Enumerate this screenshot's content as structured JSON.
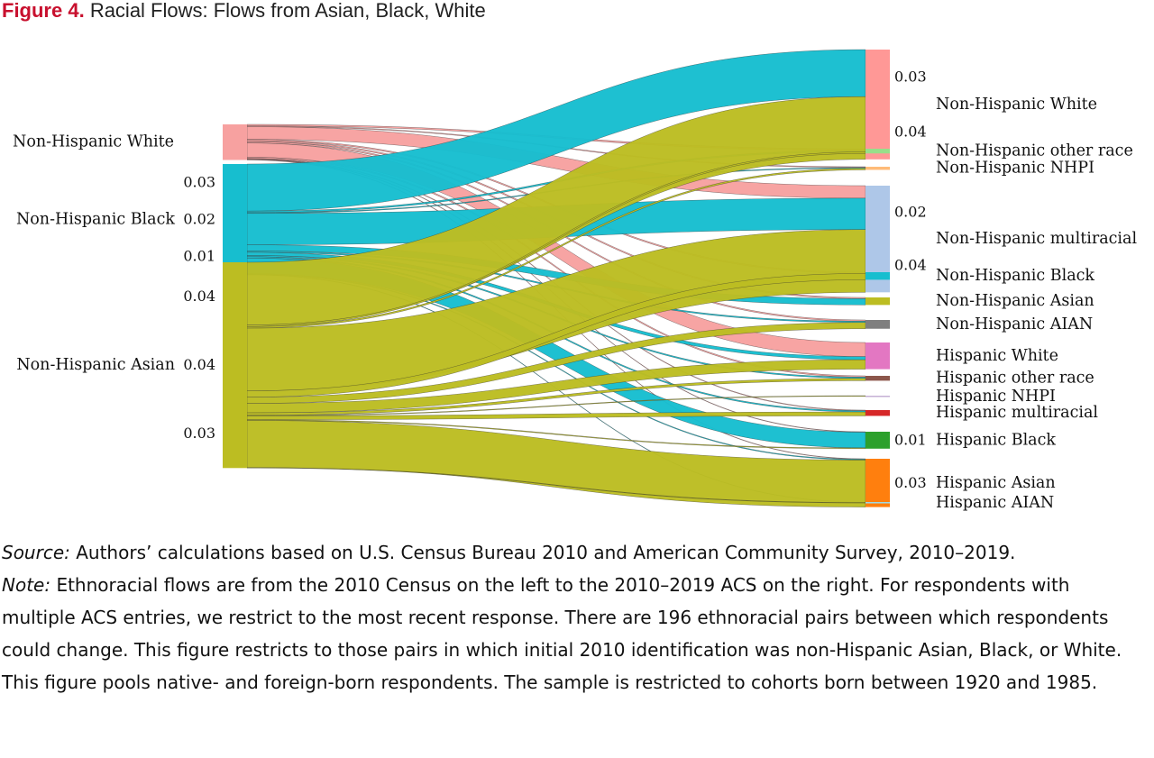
{
  "title": {
    "prefix": "Figure 4.",
    "text": "Racial Flows: Flows from Asian, Black, White"
  },
  "notes": {
    "source_label": "Source:",
    "source_text": "Authors’ calculations based on U.S. Census Bureau 2010 and American Community Survey, 2010–2019.",
    "note_label": "Note:",
    "note_text": "Ethnoracial flows are from the 2010 Census on the left to the 2010–2019 ACS on the right. For respondents with multiple ACS entries, we restrict to the most recent response. There are 196 ethnora­cial pairs between which respondents could change. This figure restricts to those pairs in which initial 2010 identification was non-Hispanic Asian, Black, or White. This figure pools native- and foreign-born respondents. The sample is restricted to cohorts born between 1920 and 1985."
  },
  "chart_data": {
    "type": "sankey",
    "sources": [
      {
        "name": "Non-Hispanic White",
        "color": "#f7a1a0",
        "value_labels": []
      },
      {
        "name": "Non-Hispanic Black",
        "color": "#17becf",
        "value_labels": [
          "0.03",
          "0.02",
          "0.01"
        ]
      },
      {
        "name": "Non-Hispanic Asian",
        "color": "#bcbd22",
        "value_labels": [
          "0.04",
          "0.04",
          "0.03"
        ]
      }
    ],
    "targets": [
      {
        "name": "Non-Hispanic White",
        "color": "#ff9896",
        "value_labels": [
          "0.03",
          "0.04"
        ]
      },
      {
        "name": "Non-Hispanic other race",
        "color": "#98df8a",
        "value_labels": []
      },
      {
        "name": "Non-Hispanic NHPI",
        "color": "#ffbb78",
        "value_labels": []
      },
      {
        "name": "Non-Hispanic multiracial",
        "color": "#aec7e8",
        "value_labels": [
          "0.02",
          "0.04"
        ]
      },
      {
        "name": "Non-Hispanic Black",
        "color": "#17becf",
        "value_labels": []
      },
      {
        "name": "Non-Hispanic Asian",
        "color": "#bcbd22",
        "value_labels": []
      },
      {
        "name": "Non-Hispanic AIAN",
        "color": "#7f7f7f",
        "value_labels": []
      },
      {
        "name": "Hispanic White",
        "color": "#e377c2",
        "value_labels": []
      },
      {
        "name": "Hispanic other race",
        "color": "#8c564b",
        "value_labels": []
      },
      {
        "name": "Hispanic NHPI",
        "color": "#c5b0d5",
        "value_labels": []
      },
      {
        "name": "Hispanic multiracial",
        "color": "#d62728",
        "value_labels": []
      },
      {
        "name": "Hispanic Black",
        "color": "#2ca02c",
        "value_labels": [
          "0.01"
        ]
      },
      {
        "name": "Hispanic Asian",
        "color": "#ff7f0e",
        "value_labels": [
          "0.03"
        ]
      },
      {
        "name": "Hispanic AIAN",
        "color": "#9edae5",
        "value_labels": []
      }
    ],
    "flows": [
      {
        "source": "Non-Hispanic White",
        "target": "Non-Hispanic other race",
        "value": 0.001
      },
      {
        "source": "Non-Hispanic White",
        "target": "Non-Hispanic NHPI",
        "value": 0.0005
      },
      {
        "source": "Non-Hispanic White",
        "target": "Non-Hispanic multiracial",
        "value": 0.008
      },
      {
        "source": "Non-Hispanic White",
        "target": "Non-Hispanic Black",
        "value": 0.0008
      },
      {
        "source": "Non-Hispanic White",
        "target": "Non-Hispanic Asian",
        "value": 0.0008
      },
      {
        "source": "Non-Hispanic White",
        "target": "Non-Hispanic AIAN",
        "value": 0.0008
      },
      {
        "source": "Non-Hispanic White",
        "target": "Hispanic White",
        "value": 0.009
      },
      {
        "source": "Non-Hispanic White",
        "target": "Hispanic other race",
        "value": 0.0008
      },
      {
        "source": "Non-Hispanic White",
        "target": "Hispanic multiracial",
        "value": 0.0004
      },
      {
        "source": "Non-Hispanic White",
        "target": "Hispanic Black",
        "value": 0.0003
      },
      {
        "source": "Non-Hispanic White",
        "target": "Hispanic Asian",
        "value": 0.0003
      },
      {
        "source": "Non-Hispanic Black",
        "target": "Non-Hispanic White",
        "value": 0.03
      },
      {
        "source": "Non-Hispanic Black",
        "target": "Non-Hispanic other race",
        "value": 0.001
      },
      {
        "source": "Non-Hispanic Black",
        "target": "Non-Hispanic NHPI",
        "value": 0.0005
      },
      {
        "source": "Non-Hispanic Black",
        "target": "Non-Hispanic multiracial",
        "value": 0.02
      },
      {
        "source": "Non-Hispanic Black",
        "target": "Non-Hispanic Asian",
        "value": 0.004
      },
      {
        "source": "Non-Hispanic Black",
        "target": "Non-Hispanic AIAN",
        "value": 0.0008
      },
      {
        "source": "Non-Hispanic Black",
        "target": "Hispanic White",
        "value": 0.002
      },
      {
        "source": "Non-Hispanic Black",
        "target": "Hispanic other race",
        "value": 0.0008
      },
      {
        "source": "Non-Hispanic Black",
        "target": "Hispanic multiracial",
        "value": 0.0008
      },
      {
        "source": "Non-Hispanic Black",
        "target": "Hispanic Black",
        "value": 0.01
      },
      {
        "source": "Non-Hispanic Black",
        "target": "Hispanic Asian",
        "value": 0.0005
      },
      {
        "source": "Non-Hispanic Black",
        "target": "Hispanic AIAN",
        "value": 0.0003
      },
      {
        "source": "Non-Hispanic Asian",
        "target": "Non-Hispanic White",
        "value": 0.04
      },
      {
        "source": "Non-Hispanic Asian",
        "target": "Non-Hispanic other race",
        "value": 0.001
      },
      {
        "source": "Non-Hispanic Asian",
        "target": "Non-Hispanic NHPI",
        "value": 0.001
      },
      {
        "source": "Non-Hispanic Asian",
        "target": "Non-Hispanic multiracial",
        "value": 0.04
      },
      {
        "source": "Non-Hispanic Asian",
        "target": "Non-Hispanic Black",
        "value": 0.004
      },
      {
        "source": "Non-Hispanic Asian",
        "target": "Non-Hispanic AIAN",
        "value": 0.004
      },
      {
        "source": "Non-Hispanic Asian",
        "target": "Hispanic White",
        "value": 0.006
      },
      {
        "source": "Non-Hispanic Asian",
        "target": "Hispanic other race",
        "value": 0.0015
      },
      {
        "source": "Non-Hispanic Asian",
        "target": "Hispanic NHPI",
        "value": 0.0004
      },
      {
        "source": "Non-Hispanic Asian",
        "target": "Hispanic multiracial",
        "value": 0.0025
      },
      {
        "source": "Non-Hispanic Asian",
        "target": "Hispanic Black",
        "value": 0.0005
      },
      {
        "source": "Non-Hispanic Asian",
        "target": "Hispanic Asian",
        "value": 0.03
      },
      {
        "source": "Non-Hispanic Asian",
        "target": "Hispanic AIAN",
        "value": 0.0003
      }
    ]
  }
}
